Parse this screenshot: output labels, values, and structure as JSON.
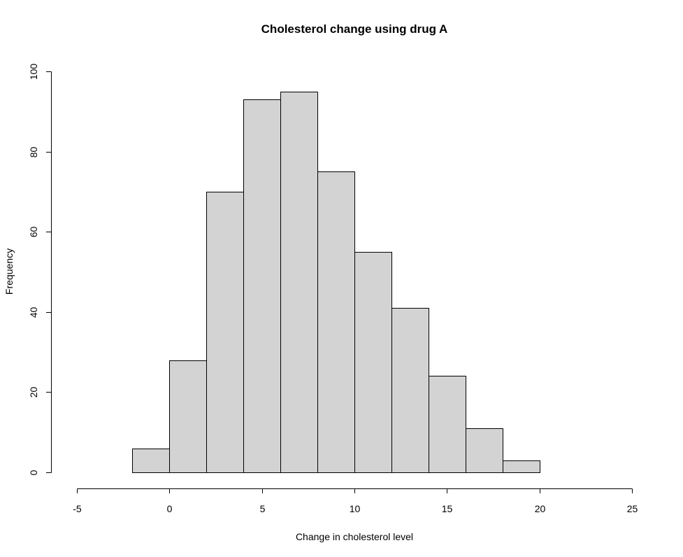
{
  "chart_data": {
    "type": "bar",
    "subtype": "histogram",
    "title": "Cholesterol change using drug A",
    "xlabel": "Change in cholesterol level",
    "ylabel": "Frequency",
    "bins": [
      {
        "x0": -2,
        "x1": 0,
        "count": 6
      },
      {
        "x0": 0,
        "x1": 2,
        "count": 28
      },
      {
        "x0": 2,
        "x1": 4,
        "count": 70
      },
      {
        "x0": 4,
        "x1": 6,
        "count": 93
      },
      {
        "x0": 6,
        "x1": 8,
        "count": 95
      },
      {
        "x0": 8,
        "x1": 10,
        "count": 75
      },
      {
        "x0": 10,
        "x1": 12,
        "count": 55
      },
      {
        "x0": 12,
        "x1": 14,
        "count": 41
      },
      {
        "x0": 14,
        "x1": 16,
        "count": 24
      },
      {
        "x0": 16,
        "x1": 18,
        "count": 11
      },
      {
        "x0": 18,
        "x1": 20,
        "count": 3
      }
    ],
    "xlim": [
      -5,
      25
    ],
    "ylim": [
      0,
      100
    ],
    "x_ticks": [
      "-5",
      "0",
      "5",
      "10",
      "15",
      "20",
      "25"
    ],
    "y_ticks": [
      "0",
      "20",
      "40",
      "60",
      "80",
      "100"
    ],
    "grid": false,
    "legend": "none",
    "colors": {
      "bar_fill": "#d3d3d3",
      "bar_stroke": "#000000",
      "background": "#ffffff"
    }
  }
}
